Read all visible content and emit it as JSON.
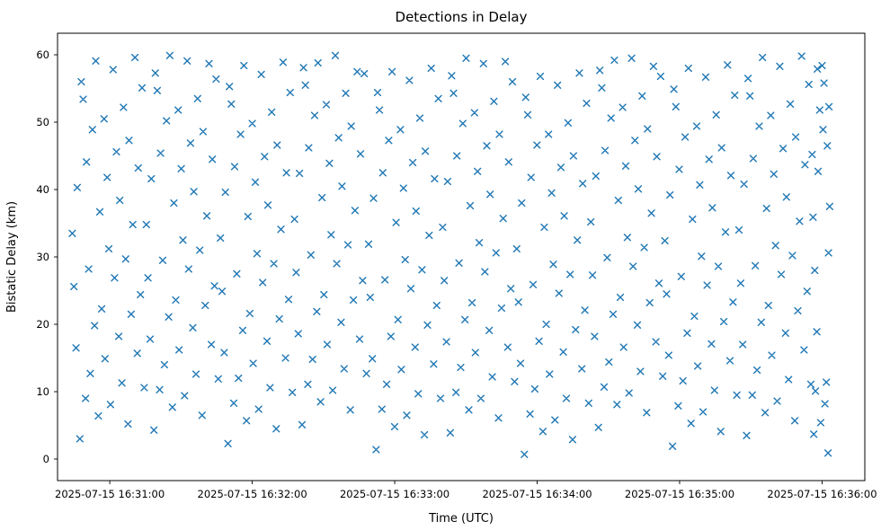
{
  "chart_data": {
    "type": "scatter",
    "title": "Detections in Delay",
    "xlabel": "Time (UTC)",
    "ylabel": "Bistatic Delay (km)",
    "marker": "x",
    "marker_color": "#1f77b4",
    "grid": false,
    "legend": null,
    "x_encoding": "seconds relative to 2025-07-15 16:31:00 UTC",
    "xlim": [
      -22,
      318
    ],
    "ylim": [
      -3.2,
      63.2
    ],
    "xticks": [
      {
        "value": 0,
        "label": "2025-07-15 16:31:00"
      },
      {
        "value": 60,
        "label": "2025-07-15 16:32:00"
      },
      {
        "value": 120,
        "label": "2025-07-15 16:33:00"
      },
      {
        "value": 180,
        "label": "2025-07-15 16:34:00"
      },
      {
        "value": 240,
        "label": "2025-07-15 16:35:00"
      },
      {
        "value": 300,
        "label": "2025-07-15 16:36:00"
      }
    ],
    "yticks": [
      0,
      10,
      20,
      30,
      40,
      50,
      60
    ],
    "points": [
      [
        -15.8,
        33.5
      ],
      [
        -15.1,
        25.6
      ],
      [
        -14.2,
        16.5
      ],
      [
        -13.7,
        40.3
      ],
      [
        -12.6,
        3
      ],
      [
        -12,
        56
      ],
      [
        -11.2,
        53.4
      ],
      [
        -10.2,
        9
      ],
      [
        -9.8,
        44.1
      ],
      [
        -8.9,
        28.2
      ],
      [
        -8.2,
        12.7
      ],
      [
        -7.3,
        48.9
      ],
      [
        -6.4,
        19.8
      ],
      [
        -5.9,
        59.1
      ],
      [
        -4.8,
        6.4
      ],
      [
        -4.2,
        36.7
      ],
      [
        -3.4,
        22.3
      ],
      [
        -2.4,
        50.5
      ],
      [
        -2,
        14.9
      ],
      [
        -1.1,
        41.8
      ],
      [
        -0.4,
        31.2
      ],
      [
        0.3,
        8.1
      ],
      [
        1.4,
        57.8
      ],
      [
        2,
        26.9
      ],
      [
        2.8,
        45.6
      ],
      [
        3.8,
        18.2
      ],
      [
        4.2,
        38.4
      ],
      [
        5.1,
        11.3
      ],
      [
        5.8,
        52.2
      ],
      [
        6.7,
        29.7
      ],
      [
        7.7,
        5.2
      ],
      [
        8.1,
        47.3
      ],
      [
        9,
        21.5
      ],
      [
        9.7,
        34.8
      ],
      [
        10.6,
        59.6
      ],
      [
        11.6,
        15.7
      ],
      [
        12,
        43.2
      ],
      [
        12.9,
        24.4
      ],
      [
        13.6,
        55.1
      ],
      [
        14.5,
        10.6
      ],
      [
        15.4,
        34.8
      ],
      [
        16.1,
        26.9
      ],
      [
        17,
        17.8
      ],
      [
        17.5,
        41.6
      ],
      [
        18.6,
        4.3
      ],
      [
        19.2,
        57.3
      ],
      [
        20,
        54.7
      ],
      [
        21,
        10.3
      ],
      [
        21.4,
        45.4
      ],
      [
        22.3,
        29.5
      ],
      [
        23,
        14
      ],
      [
        23.9,
        50.2
      ],
      [
        24.8,
        21.1
      ],
      [
        25.3,
        59.9
      ],
      [
        26.4,
        7.7
      ],
      [
        27,
        38
      ],
      [
        27.8,
        23.6
      ],
      [
        28.8,
        51.8
      ],
      [
        29.2,
        16.2
      ],
      [
        30.1,
        43.1
      ],
      [
        30.8,
        32.5
      ],
      [
        31.5,
        9.4
      ],
      [
        32.6,
        59.1
      ],
      [
        33.2,
        28.2
      ],
      [
        34,
        46.9
      ],
      [
        35,
        19.5
      ],
      [
        35.4,
        39.7
      ],
      [
        36.3,
        12.6
      ],
      [
        37,
        53.5
      ],
      [
        37.9,
        31
      ],
      [
        38.9,
        6.5
      ],
      [
        39.3,
        48.6
      ],
      [
        40.2,
        22.8
      ],
      [
        40.9,
        36.1
      ],
      [
        41.8,
        58.7
      ],
      [
        42.8,
        17
      ],
      [
        43.2,
        44.5
      ],
      [
        44.1,
        25.7
      ],
      [
        44.8,
        56.4
      ],
      [
        45.7,
        11.9
      ],
      [
        46.6,
        32.8
      ],
      [
        47.3,
        24.9
      ],
      [
        48.2,
        15.8
      ],
      [
        48.7,
        39.6
      ],
      [
        49.8,
        2.3
      ],
      [
        50.4,
        55.3
      ],
      [
        51.2,
        52.7
      ],
      [
        52.2,
        8.3
      ],
      [
        52.6,
        43.4
      ],
      [
        53.5,
        27.5
      ],
      [
        54.2,
        12
      ],
      [
        55.1,
        48.2
      ],
      [
        56,
        19.1
      ],
      [
        56.5,
        58.4
      ],
      [
        57.6,
        5.7
      ],
      [
        58.2,
        36
      ],
      [
        59,
        21.6
      ],
      [
        60,
        49.8
      ],
      [
        60.4,
        14.2
      ],
      [
        61.3,
        41.1
      ],
      [
        62,
        30.5
      ],
      [
        62.7,
        7.4
      ],
      [
        63.8,
        57.1
      ],
      [
        64.4,
        26.2
      ],
      [
        65.2,
        44.9
      ],
      [
        66.2,
        17.5
      ],
      [
        66.6,
        37.7
      ],
      [
        67.5,
        10.6
      ],
      [
        68.2,
        51.5
      ],
      [
        69.1,
        29
      ],
      [
        70.1,
        4.5
      ],
      [
        70.5,
        46.6
      ],
      [
        71.4,
        20.8
      ],
      [
        72.1,
        34.1
      ],
      [
        73,
        58.9
      ],
      [
        74,
        15
      ],
      [
        74.4,
        42.5
      ],
      [
        75.3,
        23.7
      ],
      [
        76,
        54.4
      ],
      [
        76.9,
        9.9
      ],
      [
        77.8,
        35.6
      ],
      [
        78.5,
        27.7
      ],
      [
        79.4,
        18.6
      ],
      [
        79.9,
        42.4
      ],
      [
        81,
        5.1
      ],
      [
        81.6,
        58.1
      ],
      [
        82.4,
        55.5
      ],
      [
        83.4,
        11.1
      ],
      [
        83.8,
        46.2
      ],
      [
        84.7,
        30.3
      ],
      [
        85.4,
        14.8
      ],
      [
        86.3,
        51
      ],
      [
        87.2,
        21.9
      ],
      [
        87.7,
        58.8
      ],
      [
        88.8,
        8.5
      ],
      [
        89.4,
        38.8
      ],
      [
        90.2,
        24.4
      ],
      [
        91.2,
        52.6
      ],
      [
        91.6,
        17
      ],
      [
        92.5,
        43.9
      ],
      [
        93.2,
        33.3
      ],
      [
        93.9,
        10.2
      ],
      [
        95,
        59.9
      ],
      [
        95.6,
        29
      ],
      [
        96.4,
        47.7
      ],
      [
        97.4,
        20.3
      ],
      [
        97.8,
        40.5
      ],
      [
        98.7,
        13.4
      ],
      [
        99.4,
        54.3
      ],
      [
        100.3,
        31.8
      ],
      [
        101.3,
        7.3
      ],
      [
        101.7,
        49.4
      ],
      [
        102.6,
        23.6
      ],
      [
        103.3,
        36.9
      ],
      [
        104.2,
        57.5
      ],
      [
        105.2,
        17.8
      ],
      [
        105.6,
        45.3
      ],
      [
        106.5,
        26.5
      ],
      [
        107.2,
        57.2
      ],
      [
        108.1,
        12.7
      ],
      [
        109,
        31.9
      ],
      [
        109.7,
        24
      ],
      [
        110.6,
        14.9
      ],
      [
        111.1,
        38.7
      ],
      [
        112.2,
        1.4
      ],
      [
        112.8,
        54.4
      ],
      [
        113.6,
        51.8
      ],
      [
        114.6,
        7.4
      ],
      [
        115,
        42.5
      ],
      [
        115.9,
        26.6
      ],
      [
        116.6,
        11.1
      ],
      [
        117.5,
        47.3
      ],
      [
        118.4,
        18.2
      ],
      [
        118.9,
        57.5
      ],
      [
        120,
        4.8
      ],
      [
        120.6,
        35.1
      ],
      [
        121.4,
        20.7
      ],
      [
        122.4,
        48.9
      ],
      [
        122.8,
        13.3
      ],
      [
        123.7,
        40.2
      ],
      [
        124.4,
        29.6
      ],
      [
        125.1,
        6.5
      ],
      [
        126.2,
        56.2
      ],
      [
        126.8,
        25.3
      ],
      [
        127.6,
        44
      ],
      [
        128.6,
        16.6
      ],
      [
        129,
        36.8
      ],
      [
        129.9,
        9.7
      ],
      [
        130.6,
        50.6
      ],
      [
        131.5,
        28.1
      ],
      [
        132.5,
        3.6
      ],
      [
        132.9,
        45.7
      ],
      [
        133.8,
        19.9
      ],
      [
        134.5,
        33.2
      ],
      [
        135.4,
        58
      ],
      [
        136.4,
        14.1
      ],
      [
        136.8,
        41.6
      ],
      [
        137.7,
        22.8
      ],
      [
        138.4,
        53.5
      ],
      [
        139.3,
        9
      ],
      [
        140.2,
        34.4
      ],
      [
        140.9,
        26.5
      ],
      [
        141.8,
        17.4
      ],
      [
        142.3,
        41.2
      ],
      [
        143.4,
        3.9
      ],
      [
        144,
        56.9
      ],
      [
        144.8,
        54.3
      ],
      [
        145.8,
        9.9
      ],
      [
        146.2,
        45
      ],
      [
        147.1,
        29.1
      ],
      [
        147.8,
        13.6
      ],
      [
        148.7,
        49.8
      ],
      [
        149.6,
        20.7
      ],
      [
        150.1,
        59.5
      ],
      [
        151.2,
        7.3
      ],
      [
        151.8,
        37.6
      ],
      [
        152.6,
        23.2
      ],
      [
        153.6,
        51.4
      ],
      [
        154,
        15.8
      ],
      [
        154.9,
        42.7
      ],
      [
        155.6,
        32.1
      ],
      [
        156.3,
        9
      ],
      [
        157.4,
        58.7
      ],
      [
        158,
        27.8
      ],
      [
        158.8,
        46.5
      ],
      [
        159.8,
        19.1
      ],
      [
        160.2,
        39.3
      ],
      [
        161.1,
        12.2
      ],
      [
        161.8,
        53.1
      ],
      [
        162.7,
        30.6
      ],
      [
        163.7,
        6.1
      ],
      [
        164.1,
        48.2
      ],
      [
        165,
        22.4
      ],
      [
        165.7,
        35.7
      ],
      [
        166.6,
        59
      ],
      [
        167.6,
        16.6
      ],
      [
        168,
        44.1
      ],
      [
        168.9,
        25.3
      ],
      [
        169.6,
        56
      ],
      [
        170.5,
        11.5
      ],
      [
        171.4,
        31.2
      ],
      [
        172.1,
        23.3
      ],
      [
        173,
        14.2
      ],
      [
        173.5,
        38
      ],
      [
        174.6,
        0.7
      ],
      [
        175.2,
        53.7
      ],
      [
        176,
        51.1
      ],
      [
        177,
        6.7
      ],
      [
        177.4,
        41.8
      ],
      [
        178.3,
        25.9
      ],
      [
        179,
        10.4
      ],
      [
        179.9,
        46.6
      ],
      [
        180.8,
        17.5
      ],
      [
        181.3,
        56.8
      ],
      [
        182.4,
        4.1
      ],
      [
        183,
        34.4
      ],
      [
        183.8,
        20
      ],
      [
        184.8,
        48.2
      ],
      [
        185.2,
        12.6
      ],
      [
        186.1,
        39.5
      ],
      [
        186.8,
        28.9
      ],
      [
        187.5,
        5.8
      ],
      [
        188.6,
        55.5
      ],
      [
        189.2,
        24.6
      ],
      [
        190,
        43.3
      ],
      [
        191,
        15.9
      ],
      [
        191.4,
        36.1
      ],
      [
        192.3,
        9
      ],
      [
        193,
        49.9
      ],
      [
        193.9,
        27.4
      ],
      [
        194.9,
        2.9
      ],
      [
        195.3,
        45
      ],
      [
        196.2,
        19.2
      ],
      [
        196.9,
        32.5
      ],
      [
        197.8,
        57.3
      ],
      [
        198.8,
        13.4
      ],
      [
        199.2,
        40.9
      ],
      [
        200.1,
        22.1
      ],
      [
        200.8,
        52.8
      ],
      [
        201.7,
        8.3
      ],
      [
        202.6,
        35.2
      ],
      [
        203.3,
        27.3
      ],
      [
        204.2,
        18.2
      ],
      [
        204.7,
        42
      ],
      [
        205.8,
        4.7
      ],
      [
        206.4,
        57.7
      ],
      [
        207.2,
        55.1
      ],
      [
        208.2,
        10.7
      ],
      [
        208.6,
        45.8
      ],
      [
        209.5,
        29.9
      ],
      [
        210.2,
        14.4
      ],
      [
        211.1,
        50.6
      ],
      [
        212,
        21.5
      ],
      [
        212.5,
        59.2
      ],
      [
        213.6,
        8.1
      ],
      [
        214.2,
        38.4
      ],
      [
        215,
        24
      ],
      [
        216,
        52.2
      ],
      [
        216.4,
        16.6
      ],
      [
        217.3,
        43.5
      ],
      [
        218,
        32.9
      ],
      [
        218.7,
        9.8
      ],
      [
        219.8,
        59.5
      ],
      [
        220.4,
        28.6
      ],
      [
        221.2,
        47.3
      ],
      [
        222.2,
        19.9
      ],
      [
        222.6,
        40.1
      ],
      [
        223.5,
        13
      ],
      [
        224.2,
        53.9
      ],
      [
        225.1,
        31.4
      ],
      [
        226.1,
        6.9
      ],
      [
        226.5,
        49
      ],
      [
        227.4,
        23.2
      ],
      [
        228.1,
        36.5
      ],
      [
        229,
        58.3
      ],
      [
        230,
        17.4
      ],
      [
        230.4,
        44.9
      ],
      [
        231.3,
        26.1
      ],
      [
        232,
        56.8
      ],
      [
        232.9,
        12.3
      ],
      [
        233.8,
        32.4
      ],
      [
        234.5,
        24.5
      ],
      [
        235.4,
        15.4
      ],
      [
        235.9,
        39.2
      ],
      [
        237,
        1.9
      ],
      [
        237.6,
        54.9
      ],
      [
        238.4,
        52.3
      ],
      [
        239.4,
        7.9
      ],
      [
        239.8,
        43
      ],
      [
        240.7,
        27.1
      ],
      [
        241.4,
        11.6
      ],
      [
        242.3,
        47.8
      ],
      [
        243.2,
        18.7
      ],
      [
        243.7,
        58
      ],
      [
        244.8,
        5.3
      ],
      [
        245.4,
        35.6
      ],
      [
        246.2,
        21.2
      ],
      [
        247.2,
        49.4
      ],
      [
        247.6,
        13.8
      ],
      [
        248.5,
        40.7
      ],
      [
        249.2,
        30.1
      ],
      [
        249.9,
        7
      ],
      [
        251,
        56.7
      ],
      [
        251.6,
        25.8
      ],
      [
        252.4,
        44.5
      ],
      [
        253.4,
        17.1
      ],
      [
        253.8,
        37.3
      ],
      [
        254.7,
        10.2
      ],
      [
        255.4,
        51.1
      ],
      [
        256.3,
        28.6
      ],
      [
        257.3,
        4.1
      ],
      [
        257.7,
        46.2
      ],
      [
        258.6,
        20.4
      ],
      [
        259.3,
        33.7
      ],
      [
        260.2,
        58.5
      ],
      [
        261.2,
        14.6
      ],
      [
        261.6,
        42.1
      ],
      [
        262.5,
        23.3
      ],
      [
        263.2,
        54
      ],
      [
        264.1,
        9.5
      ],
      [
        265,
        34
      ],
      [
        265.7,
        26.1
      ],
      [
        266.6,
        17
      ],
      [
        267.1,
        40.8
      ],
      [
        268.2,
        3.5
      ],
      [
        268.8,
        56.5
      ],
      [
        269.6,
        53.9
      ],
      [
        270.6,
        9.5
      ],
      [
        271,
        44.6
      ],
      [
        271.9,
        28.7
      ],
      [
        272.6,
        13.2
      ],
      [
        273.5,
        49.4
      ],
      [
        274.4,
        20.3
      ],
      [
        274.9,
        59.6
      ],
      [
        276,
        6.9
      ],
      [
        276.6,
        37.2
      ],
      [
        277.4,
        22.8
      ],
      [
        278.4,
        51
      ],
      [
        278.8,
        15.4
      ],
      [
        279.7,
        42.3
      ],
      [
        280.4,
        31.7
      ],
      [
        281.1,
        8.6
      ],
      [
        282.2,
        58.3
      ],
      [
        282.8,
        27.4
      ],
      [
        283.6,
        46.1
      ],
      [
        284.6,
        18.7
      ],
      [
        285,
        38.9
      ],
      [
        285.9,
        11.8
      ],
      [
        286.6,
        52.7
      ],
      [
        287.5,
        30.2
      ],
      [
        288.5,
        5.7
      ],
      [
        288.9,
        47.8
      ],
      [
        289.8,
        22
      ],
      [
        290.5,
        35.3
      ],
      [
        291.4,
        59.8
      ],
      [
        292.4,
        16.2
      ],
      [
        292.8,
        43.7
      ],
      [
        293.7,
        24.9
      ],
      [
        294.4,
        55.6
      ],
      [
        295.3,
        11.1
      ],
      [
        296.2,
        35.9
      ],
      [
        296.9,
        28
      ],
      [
        297.8,
        18.9
      ],
      [
        298.3,
        42.7
      ],
      [
        299.4,
        5.4
      ],
      [
        300,
        58.4
      ],
      [
        300.8,
        55.8
      ],
      [
        301.8,
        11.4
      ],
      [
        302.2,
        46.5
      ],
      [
        302.7,
        30.6
      ],
      [
        302.9,
        52.3
      ],
      [
        303.2,
        37.5
      ],
      [
        302.5,
        0.9
      ],
      [
        301.2,
        8.2
      ],
      [
        300.4,
        48.9
      ],
      [
        299,
        51.8
      ],
      [
        298,
        57.9
      ],
      [
        297.2,
        10.1
      ],
      [
        296.5,
        3.7
      ],
      [
        295.8,
        45.2
      ]
    ]
  }
}
